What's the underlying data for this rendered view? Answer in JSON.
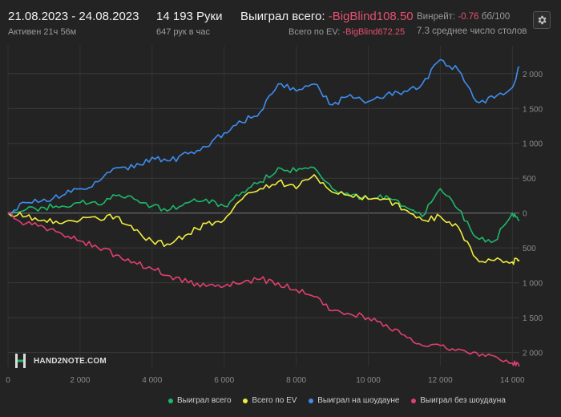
{
  "header": {
    "date_range": "21.08.2023 - 24.08.2023",
    "active_time": "Активен 21ч 56м",
    "hands": "14 193 Руки",
    "hands_per_hour": "647 рук в час",
    "won_total_label": "Выиграл всего:",
    "won_total_value": "-BigBlind108.50",
    "ev_total_label": "Всего по EV:",
    "ev_total_value": "-BigBlind672.25",
    "winrate_label": "Винрейт:",
    "winrate_value": "-0.76",
    "winrate_unit": "бб/100",
    "avg_tables": "7.3 среднее число столов"
  },
  "icons": {
    "settings": "gear-icon",
    "logo": "hand2note-logo-icon"
  },
  "logo_text": "HAND2NOTE.COM",
  "colors": {
    "background": "#232323",
    "won_total": "#1db86a",
    "ev": "#f0ec3c",
    "showdown": "#3d8ef0",
    "no_showdown": "#e0406e",
    "negative_text": "#e5506f"
  },
  "chart_data": {
    "type": "line",
    "xlim": [
      0,
      14193
    ],
    "ylim": [
      -2200,
      2400
    ],
    "x_ticks": [
      0,
      2000,
      4000,
      6000,
      8000,
      10000,
      12000,
      14000
    ],
    "x_tick_labels": [
      "0",
      "2 000",
      "4 000",
      "6 000",
      "8 000",
      "10 000",
      "12 000",
      "14 000"
    ],
    "y_ticks": [
      2000,
      1500,
      1000,
      500,
      0,
      -500,
      -1000,
      -1500,
      -2000
    ],
    "y_tick_labels": [
      "2 000",
      "1 500",
      "1 000",
      "500",
      "0",
      "500",
      "1 000",
      "1 500",
      "2 000"
    ],
    "grid": true,
    "legend_position": "bottom",
    "x": [
      0,
      500,
      1000,
      1500,
      2000,
      2500,
      3000,
      3500,
      4000,
      4500,
      5000,
      5500,
      6000,
      6500,
      7000,
      7500,
      8000,
      8500,
      9000,
      9500,
      10000,
      10500,
      11000,
      11500,
      12000,
      12500,
      13000,
      13500,
      14000,
      14193
    ],
    "series": [
      {
        "name": "Выиграл всего",
        "color": "#1db86a",
        "values": [
          0,
          50,
          80,
          100,
          150,
          120,
          250,
          200,
          100,
          50,
          150,
          200,
          100,
          300,
          450,
          650,
          600,
          650,
          350,
          250,
          200,
          250,
          100,
          -50,
          350,
          50,
          -350,
          -400,
          0,
          -108
        ]
      },
      {
        "name": "Всего по EV",
        "color": "#f0ec3c",
        "values": [
          0,
          -50,
          -100,
          -150,
          -100,
          -80,
          -50,
          -250,
          -400,
          -450,
          -300,
          -150,
          -100,
          200,
          350,
          450,
          350,
          550,
          300,
          250,
          200,
          200,
          50,
          -100,
          -50,
          -200,
          -650,
          -680,
          -700,
          -672
        ]
      },
      {
        "name": "Выиграл на шоудауне",
        "color": "#3d8ef0",
        "values": [
          0,
          150,
          200,
          250,
          350,
          450,
          650,
          650,
          800,
          750,
          850,
          950,
          1150,
          1300,
          1450,
          1850,
          1750,
          1850,
          1550,
          1700,
          1600,
          1700,
          1750,
          1850,
          2200,
          2050,
          1600,
          1650,
          1800,
          2100
        ]
      },
      {
        "name": "Выиграл без шоудауна",
        "color": "#e0406e",
        "values": [
          0,
          -150,
          -200,
          -300,
          -400,
          -500,
          -600,
          -700,
          -800,
          -900,
          -1000,
          -1050,
          -1050,
          -1000,
          -950,
          -1000,
          -1100,
          -1200,
          -1400,
          -1450,
          -1500,
          -1600,
          -1750,
          -1900,
          -1900,
          -1950,
          -2000,
          -2050,
          -2150,
          -2200
        ]
      }
    ]
  }
}
